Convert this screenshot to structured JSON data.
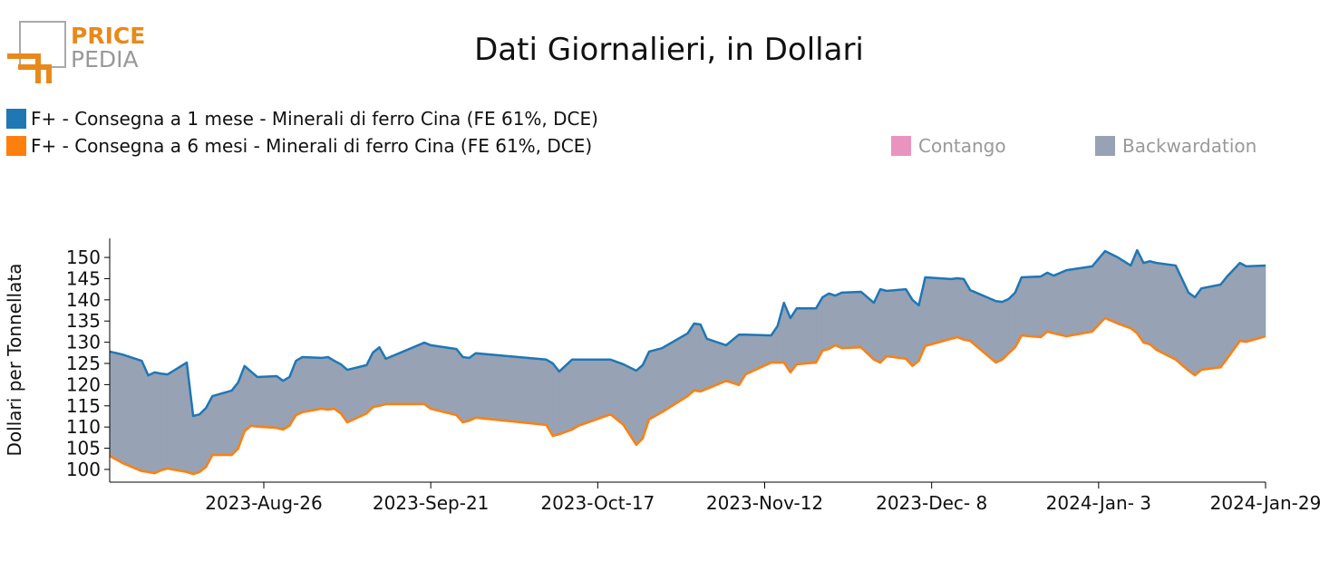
{
  "logo": {
    "line1": "PRICE",
    "line2": "PEDIA"
  },
  "chart_data": {
    "type": "line",
    "title": "Dati Giornalieri, in Dollari",
    "y_label": "Dollari per Tonnellata",
    "x": [
      "2023-08-02",
      "2023-08-04",
      "2023-08-07",
      "2023-08-08",
      "2023-08-09",
      "2023-08-10",
      "2023-08-11",
      "2023-08-14",
      "2023-08-15",
      "2023-08-16",
      "2023-08-17",
      "2023-08-18",
      "2023-08-21",
      "2023-08-22",
      "2023-08-23",
      "2023-08-24",
      "2023-08-25",
      "2023-08-28",
      "2023-08-29",
      "2023-08-30",
      "2023-08-31",
      "2023-09-01",
      "2023-09-04",
      "2023-09-05",
      "2023-09-06",
      "2023-09-07",
      "2023-09-08",
      "2023-09-11",
      "2023-09-12",
      "2023-09-13",
      "2023-09-14",
      "2023-09-20",
      "2023-09-21",
      "2023-09-25",
      "2023-09-26",
      "2023-09-27",
      "2023-09-28",
      "2023-10-09",
      "2023-10-10",
      "2023-10-11",
      "2023-10-13",
      "2023-10-14",
      "2023-10-19",
      "2023-10-21",
      "2023-10-23",
      "2023-10-24",
      "2023-10-25",
      "2023-10-27",
      "2023-10-31",
      "2023-11-01",
      "2023-11-02",
      "2023-11-03",
      "2023-11-06",
      "2023-11-08",
      "2023-11-09",
      "2023-11-13",
      "2023-11-14",
      "2023-11-15",
      "2023-11-16",
      "2023-11-17",
      "2023-11-20",
      "2023-11-21",
      "2023-11-22",
      "2023-11-23",
      "2023-11-24",
      "2023-11-27",
      "2023-11-29",
      "2023-11-30",
      "2023-12-01",
      "2023-12-04",
      "2023-12-05",
      "2023-12-06",
      "2023-12-07",
      "2023-12-11",
      "2023-12-12",
      "2023-12-13",
      "2023-12-14",
      "2023-12-18",
      "2023-12-19",
      "2023-12-20",
      "2023-12-21",
      "2023-12-22",
      "2023-12-25",
      "2023-12-26",
      "2023-12-27",
      "2023-12-29",
      "2024-01-02",
      "2024-01-04",
      "2024-01-06",
      "2024-01-08",
      "2024-01-09",
      "2024-01-10",
      "2024-01-11",
      "2024-01-12",
      "2024-01-15",
      "2024-01-17",
      "2024-01-18",
      "2024-01-19",
      "2024-01-22",
      "2024-01-23",
      "2024-01-25",
      "2024-01-26",
      "2024-01-29"
    ],
    "series": [
      {
        "name": "F+ - Consegna a 1 mese - Minerali di ferro Cina (FE 61%, DCE)",
        "color": "#1f77b4",
        "values": [
          127.8,
          127.1,
          125.6,
          122.2,
          122.9,
          122.6,
          122.4,
          125.2,
          112.6,
          113.0,
          114.5,
          117.3,
          118.6,
          120.5,
          124.4,
          123.1,
          121.8,
          122.0,
          120.9,
          121.8,
          125.6,
          126.5,
          126.3,
          126.5,
          125.6,
          124.8,
          123.5,
          124.6,
          127.6,
          128.8,
          126.1,
          129.9,
          129.3,
          128.4,
          126.5,
          126.3,
          127.4,
          125.9,
          125.0,
          123.1,
          125.9,
          125.9,
          125.9,
          124.8,
          123.3,
          124.6,
          127.8,
          128.6,
          132.1,
          134.4,
          134.2,
          130.8,
          129.3,
          131.8,
          131.8,
          131.6,
          133.8,
          139.3,
          135.7,
          138.0,
          138.0,
          140.6,
          141.5,
          141.0,
          141.7,
          141.9,
          139.3,
          142.5,
          142.1,
          142.5,
          140.0,
          138.7,
          145.3,
          144.9,
          145.1,
          144.9,
          142.3,
          139.7,
          139.5,
          140.2,
          141.7,
          145.3,
          145.5,
          146.4,
          145.7,
          147.0,
          147.9,
          151.5,
          150.0,
          148.1,
          151.7,
          148.7,
          149.1,
          148.7,
          148.1,
          141.7,
          140.6,
          142.7,
          143.6,
          145.5,
          148.7,
          147.9,
          148.1
        ]
      },
      {
        "name": "F+ - Consegna a 6 mesi - Minerali di ferro Cina (FE 61%, DCE)",
        "color": "#ff7f0e",
        "values": [
          103.2,
          101.5,
          99.6,
          99.4,
          99.1,
          99.8,
          100.2,
          99.4,
          98.9,
          99.4,
          100.6,
          103.4,
          103.4,
          104.9,
          109.0,
          110.3,
          110.1,
          109.8,
          109.4,
          110.3,
          112.8,
          113.5,
          114.3,
          114.1,
          114.3,
          113.2,
          111.1,
          113.2,
          114.7,
          115.0,
          115.4,
          115.4,
          114.3,
          112.8,
          111.1,
          111.5,
          112.2,
          110.5,
          107.9,
          108.3,
          109.4,
          110.3,
          113.0,
          110.5,
          105.8,
          107.3,
          111.8,
          113.5,
          117.3,
          118.6,
          118.4,
          119.0,
          120.9,
          119.9,
          122.4,
          125.2,
          125.2,
          125.2,
          122.9,
          124.8,
          125.2,
          128.0,
          128.4,
          129.3,
          128.6,
          128.8,
          125.9,
          125.2,
          126.7,
          126.1,
          124.4,
          125.6,
          129.1,
          130.8,
          131.2,
          130.6,
          130.3,
          125.2,
          125.9,
          127.4,
          128.8,
          131.6,
          131.2,
          132.5,
          132.1,
          131.4,
          132.5,
          135.7,
          134.4,
          133.3,
          132.1,
          129.9,
          129.5,
          128.2,
          125.9,
          123.3,
          122.2,
          123.5,
          124.1,
          126.1,
          130.3,
          130.1,
          131.4
        ]
      }
    ],
    "areas": [
      {
        "name": "Contango",
        "color": "#e994bf"
      },
      {
        "name": "Backwardation",
        "color": "#97a2b4"
      }
    ],
    "xlim": [
      "2023-08-02",
      "2024-01-29"
    ],
    "xticks": [
      {
        "value": "2023-08-26",
        "label": "2023-Aug-26"
      },
      {
        "value": "2023-09-21",
        "label": "2023-Sep-21"
      },
      {
        "value": "2023-10-17",
        "label": "2023-Oct-17"
      },
      {
        "value": "2023-11-12",
        "label": "2023-Nov-12"
      },
      {
        "value": "2023-12-08",
        "label": "2023-Dec- 8"
      },
      {
        "value": "2024-01-03",
        "label": "2024-Jan- 3"
      },
      {
        "value": "2024-01-29",
        "label": "2024-Jan-29"
      }
    ],
    "ylim": [
      97,
      154.5
    ],
    "yticks": [
      100,
      105,
      110,
      115,
      120,
      125,
      130,
      135,
      140,
      145,
      150
    ]
  }
}
